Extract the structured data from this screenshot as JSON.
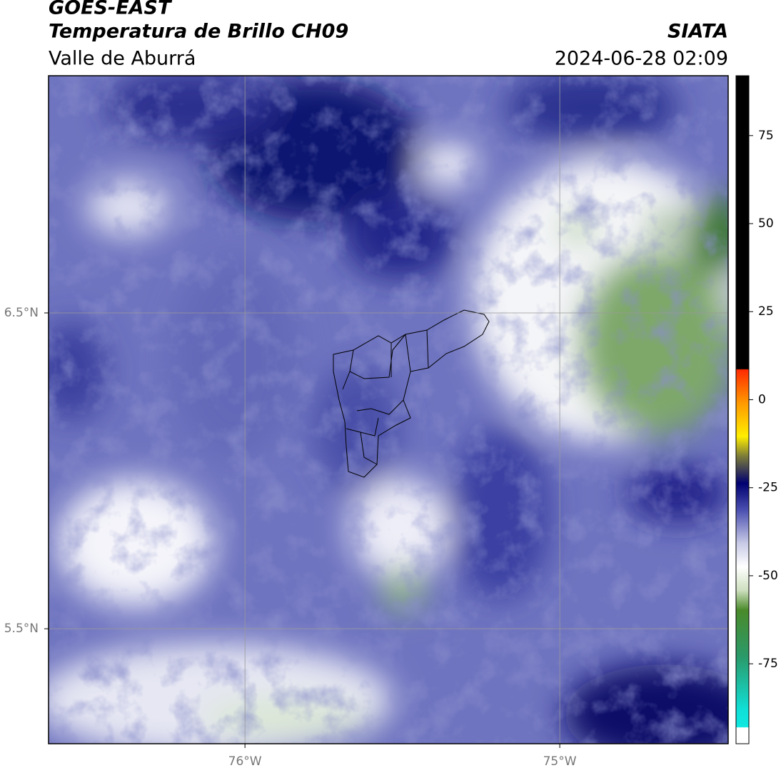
{
  "chart_data": {
    "type": "map",
    "title": "GOES-EAST",
    "subtitle": "Temperatura de Brillo CH09",
    "region": "Valle de Aburrá",
    "source": "SIATA",
    "datetime": "2024-06-28 02:09",
    "xlim": [
      -76.624,
      -74.465
    ],
    "ylim": [
      5.136,
      7.251
    ],
    "xticks": [
      {
        "value": -76,
        "label": "76°W"
      },
      {
        "value": -75,
        "label": "75°W"
      }
    ],
    "yticks": [
      {
        "value": 6.5,
        "label": "6.5°N"
      },
      {
        "value": 5.5,
        "label": "5.5°N"
      }
    ],
    "grid": true,
    "colorbar": {
      "lim": [
        -97.7,
        92.0
      ],
      "ticks": [
        75,
        50,
        25,
        0,
        -25,
        -50,
        -75
      ]
    }
  }
}
